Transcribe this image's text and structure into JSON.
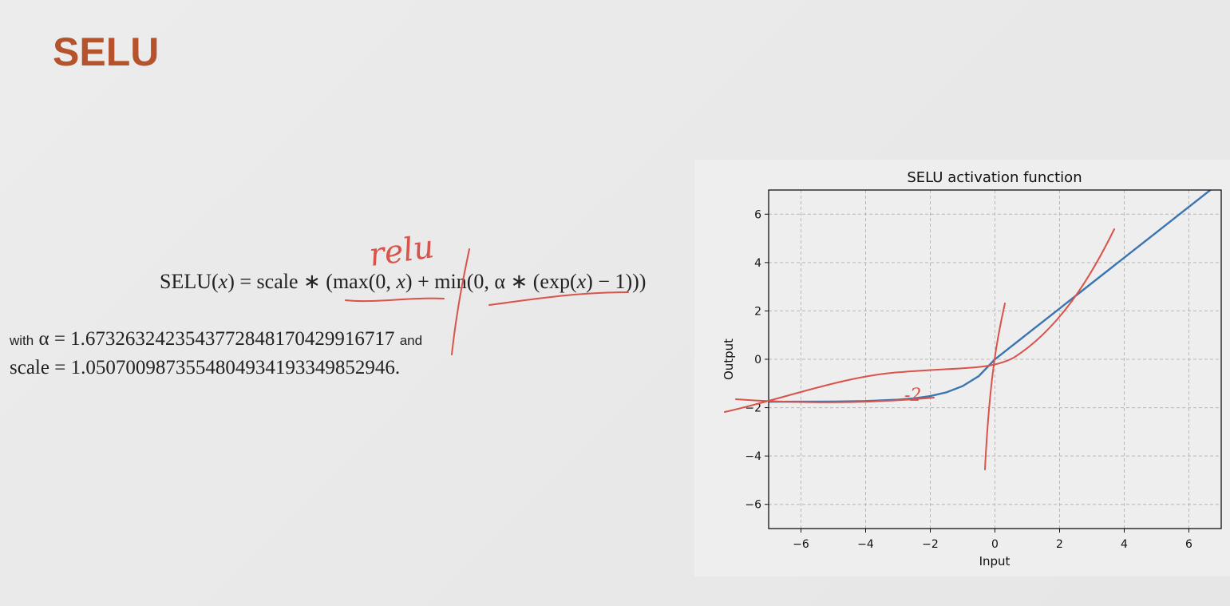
{
  "slide": {
    "title": "SELU",
    "title_color": "#b5532c"
  },
  "formula": {
    "lhs": "SELU(",
    "lhs_var": "x",
    "lhs_close": ") = scale ∗ (max(0, ",
    "max_var": "x",
    "max_close": ") + min(0, α ∗ (exp(",
    "exp_var": "x",
    "tail": ") − 1)))"
  },
  "params": {
    "with_word": "with",
    "alpha_expr": " α = 1.6732632423543772848170429916717 ",
    "and_word": "and",
    "scale_expr": "scale = 1.0507009873554804934193349852946."
  },
  "annotations": {
    "handwritten_relu": "relu",
    "handwritten_circle": "-2",
    "ink_color": "#d9534a"
  },
  "chart_data": {
    "type": "line",
    "title": "SELU activation function",
    "xlabel": "Input",
    "ylabel": "Output",
    "xlim": [
      -7,
      7
    ],
    "ylim": [
      -7,
      7
    ],
    "xticks": [
      -6,
      -4,
      -2,
      0,
      2,
      4,
      6
    ],
    "yticks": [
      -6,
      -4,
      -2,
      0,
      2,
      4,
      6
    ],
    "grid": true,
    "series_color": "#3a75b0",
    "series": [
      {
        "function": "SELU",
        "x": [
          -7,
          -6,
          -5,
          -4,
          -3,
          -2.5,
          -2,
          -1.5,
          -1,
          -0.5,
          0,
          1,
          2,
          3,
          4,
          5,
          6,
          6.7
        ],
        "y": [
          -1.757,
          -1.754,
          -1.746,
          -1.726,
          -1.671,
          -1.618,
          -1.521,
          -1.367,
          -1.111,
          -0.692,
          0,
          1.051,
          2.101,
          3.152,
          4.203,
          5.254,
          6.304,
          7.04
        ]
      }
    ]
  }
}
